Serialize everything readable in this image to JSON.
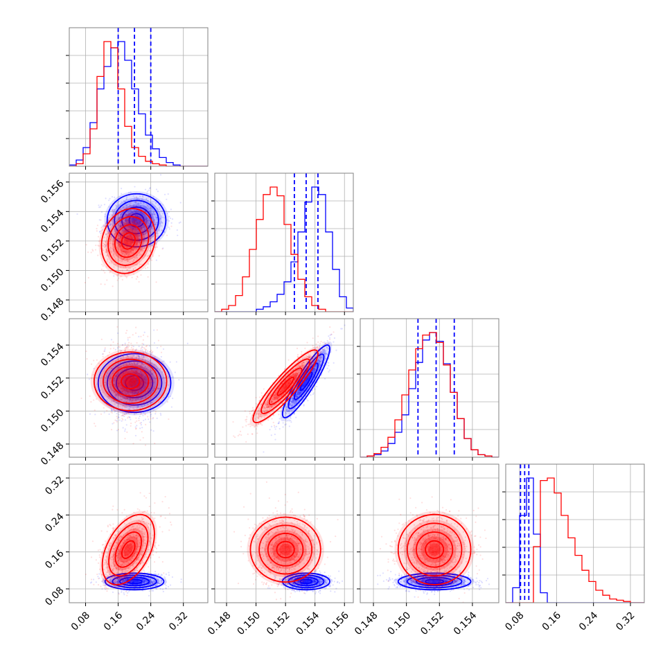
{
  "chart_data": {
    "type": "corner",
    "grid": true,
    "legend": "none",
    "colors": {
      "series_a": "#0000ff",
      "series_b": "#ff0000"
    },
    "parameters": [
      {
        "index": 0,
        "range": [
          0.04,
          0.38
        ],
        "ticks": [
          0.08,
          0.16,
          0.24,
          0.32
        ],
        "tick_labels": [
          "0.08",
          "0.16",
          "0.24",
          "0.32"
        ]
      },
      {
        "index": 1,
        "range": [
          0.1472,
          0.1566
        ],
        "ticks": [
          0.148,
          0.15,
          0.152,
          0.154,
          0.156
        ],
        "tick_labels": [
          "0.148",
          "0.150",
          "0.152",
          "0.154",
          "0.156"
        ]
      },
      {
        "index": 2,
        "range": [
          0.1472,
          0.1556
        ],
        "ticks": [
          0.148,
          0.15,
          0.152,
          0.154
        ],
        "tick_labels": [
          "0.148",
          "0.150",
          "0.152",
          "0.154"
        ]
      },
      {
        "index": 3,
        "range": [
          0.05,
          0.35
        ],
        "ticks": [
          0.08,
          0.16,
          0.24,
          0.32
        ],
        "tick_labels": [
          "0.08",
          "0.16",
          "0.24",
          "0.32"
        ]
      }
    ],
    "series": [
      {
        "color": "#0000ff",
        "quantiles": [
          [
            0.16,
            0.2,
            0.24
          ],
          [
            0.1526,
            0.1534,
            0.1542
          ],
          [
            0.1507,
            0.1518,
            0.1529
          ],
          [
            0.082,
            0.091,
            0.1
          ]
        ],
        "histograms": [
          [
            0.01,
            0.05,
            0.15,
            0.35,
            0.62,
            0.8,
            0.95,
            1.0,
            0.85,
            0.62,
            0.42,
            0.25,
            0.14,
            0.07,
            0.03,
            0.01,
            0.0,
            0.0,
            0.0,
            0.0
          ],
          [
            0.0,
            0.0,
            0.0,
            0.0,
            0.0,
            0.0,
            0.02,
            0.04,
            0.08,
            0.14,
            0.24,
            0.4,
            0.64,
            0.88,
            1.0,
            0.94,
            0.64,
            0.34,
            0.12,
            0.03
          ],
          [
            0.0,
            0.01,
            0.02,
            0.05,
            0.11,
            0.2,
            0.34,
            0.55,
            0.76,
            0.94,
            1.0,
            0.93,
            0.75,
            0.52,
            0.31,
            0.15,
            0.06,
            0.02,
            0.01,
            0.0
          ],
          [
            0.0,
            0.12,
            0.7,
            1.0,
            0.55,
            0.08,
            0.0,
            0.0,
            0.0,
            0.0,
            0.0,
            0.0,
            0.0,
            0.0,
            0.0,
            0.0,
            0.0,
            0.0,
            0.0,
            0.0
          ]
        ],
        "pairs": [
          {
            "x": 0,
            "y": 1,
            "center": [
              0.205,
              0.1534
            ],
            "sd": [
              0.036,
              0.0009
            ],
            "rho": 0.0
          },
          {
            "x": 0,
            "y": 2,
            "center": [
              0.2,
              0.1517
            ],
            "sd": [
              0.036,
              0.0011
            ],
            "rho": 0.0
          },
          {
            "x": 1,
            "y": 2,
            "center": [
              0.1534,
              0.1518
            ],
            "sd": [
              0.0008,
              0.0011
            ],
            "rho": 0.9
          },
          {
            "x": 0,
            "y": 3,
            "center": [
              0.2,
              0.096
            ],
            "sd": [
              0.036,
              0.009
            ],
            "rho": 0.0
          },
          {
            "x": 1,
            "y": 3,
            "center": [
              0.1534,
              0.096
            ],
            "sd": [
              0.0008,
              0.009
            ],
            "rho": 0.0
          },
          {
            "x": 2,
            "y": 3,
            "center": [
              0.1517,
              0.096
            ],
            "sd": [
              0.0011,
              0.009
            ],
            "rho": 0.0
          }
        ]
      },
      {
        "color": "#ff0000",
        "quantiles": [],
        "histograms": [
          [
            0.0,
            0.02,
            0.1,
            0.3,
            0.72,
            1.0,
            0.95,
            0.62,
            0.32,
            0.15,
            0.08,
            0.04,
            0.02,
            0.01,
            0.0,
            0.0,
            0.0,
            0.0,
            0.0,
            0.0
          ],
          [
            0.0,
            0.02,
            0.05,
            0.13,
            0.28,
            0.5,
            0.74,
            0.94,
            1.0,
            0.93,
            0.7,
            0.46,
            0.26,
            0.12,
            0.05,
            0.02,
            0.0,
            0.0,
            0.0,
            0.0
          ],
          [
            0.0,
            0.01,
            0.03,
            0.08,
            0.16,
            0.3,
            0.5,
            0.7,
            0.87,
            0.98,
            1.0,
            0.92,
            0.74,
            0.52,
            0.31,
            0.15,
            0.06,
            0.02,
            0.01,
            0.0
          ],
          [
            0.0,
            0.0,
            0.0,
            0.0,
            0.45,
            0.98,
            1.0,
            0.88,
            0.7,
            0.52,
            0.38,
            0.26,
            0.17,
            0.1,
            0.06,
            0.03,
            0.02,
            0.01,
            0.0,
            0.0
          ]
        ],
        "pairs": [
          {
            "x": 0,
            "y": 1,
            "center": [
              0.185,
              0.152
            ],
            "sd": [
              0.033,
              0.0011
            ],
            "rho": 0.15
          },
          {
            "x": 0,
            "y": 2,
            "center": [
              0.19,
              0.1518
            ],
            "sd": [
              0.036,
              0.0011
            ],
            "rho": 0.0
          },
          {
            "x": 1,
            "y": 2,
            "center": [
              0.152,
              0.1515
            ],
            "sd": [
              0.0011,
              0.0011
            ],
            "rho": 0.9
          },
          {
            "x": 0,
            "y": 3,
            "center": [
              0.185,
              0.165
            ],
            "sd": [
              0.032,
              0.038
            ],
            "rho": 0.45
          },
          {
            "x": 1,
            "y": 3,
            "center": [
              0.152,
              0.165
            ],
            "sd": [
              0.0011,
              0.038
            ],
            "rho": 0.0
          },
          {
            "x": 2,
            "y": 3,
            "center": [
              0.1517,
              0.165
            ],
            "sd": [
              0.0011,
              0.038
            ],
            "rho": 0.0
          }
        ]
      }
    ]
  }
}
